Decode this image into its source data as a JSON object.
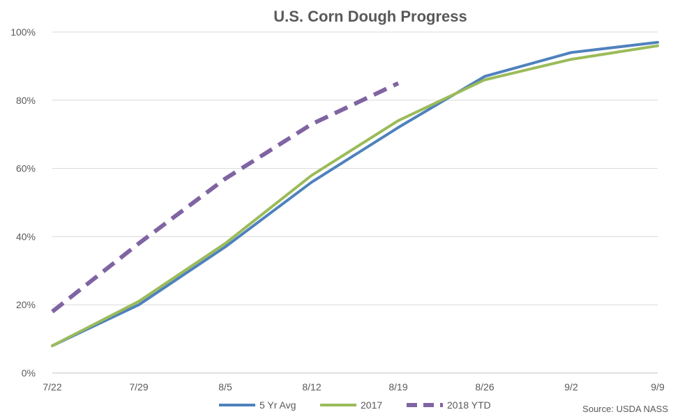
{
  "chart_data": {
    "type": "line",
    "title": "U.S. Corn Dough Progress",
    "xlabel": "",
    "ylabel": "",
    "categories": [
      "7/22",
      "7/29",
      "8/5",
      "8/12",
      "8/19",
      "8/26",
      "9/2",
      "9/9"
    ],
    "y_ticks": [
      "0%",
      "20%",
      "40%",
      "60%",
      "80%",
      "100%"
    ],
    "ylim": [
      0,
      100
    ],
    "grid": true,
    "legend_position": "bottom",
    "series": [
      {
        "name": "5 Yr Avg",
        "color": "#4F81BD",
        "dashed": false,
        "values": [
          8,
          20,
          37,
          56,
          72,
          87,
          94,
          97
        ]
      },
      {
        "name": "2017",
        "color": "#9BBB59",
        "dashed": false,
        "values": [
          8,
          21,
          38,
          58,
          74,
          86,
          92,
          96
        ]
      },
      {
        "name": "2018 YTD",
        "color": "#8064A2",
        "dashed": true,
        "values": [
          18,
          38,
          57,
          73,
          85,
          null,
          null,
          null
        ]
      }
    ],
    "source": "Source: USDA NASS"
  }
}
